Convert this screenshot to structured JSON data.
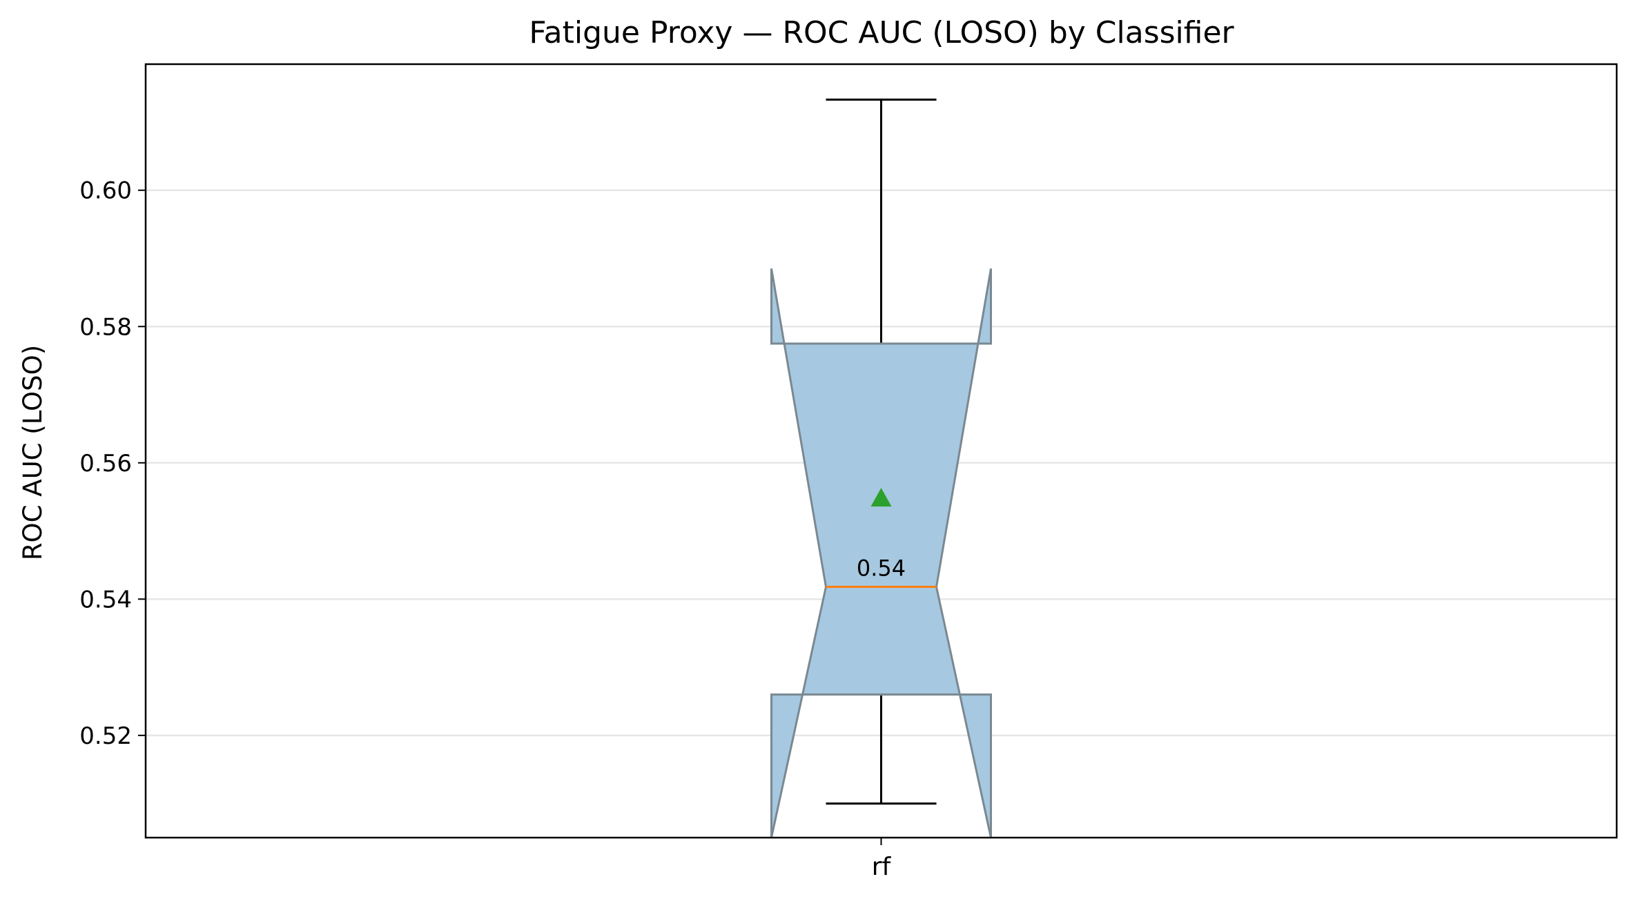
{
  "chart_data": {
    "type": "box",
    "title": "Fatigue Proxy — ROC AUC (LOSO) by Classifier",
    "xlabel": "",
    "ylabel": "ROC AUC (LOSO)",
    "ylim": [
      0.505,
      0.6185
    ],
    "yticks": [
      0.52,
      0.54,
      0.56,
      0.58,
      0.6
    ],
    "ytick_labels": [
      "0.52",
      "0.54",
      "0.56",
      "0.58",
      "0.60"
    ],
    "grid": "horizontal",
    "categories": [
      "rf"
    ],
    "boxes": [
      {
        "name": "rf",
        "whisker_low": 0.51,
        "q1": 0.526,
        "median": 0.5418,
        "q3": 0.5775,
        "whisker_high": 0.6133,
        "mean": 0.5548,
        "notch_low": 0.5035,
        "notch_high": 0.5885,
        "median_label": "0.54"
      }
    ],
    "colors": {
      "box_fill": "#a6c8e0",
      "box_edge": "#7a8891",
      "median": "#ff7f0e",
      "mean_marker": "#2ca02c",
      "whisker": "#000000",
      "grid": "#e6e6e6"
    }
  }
}
